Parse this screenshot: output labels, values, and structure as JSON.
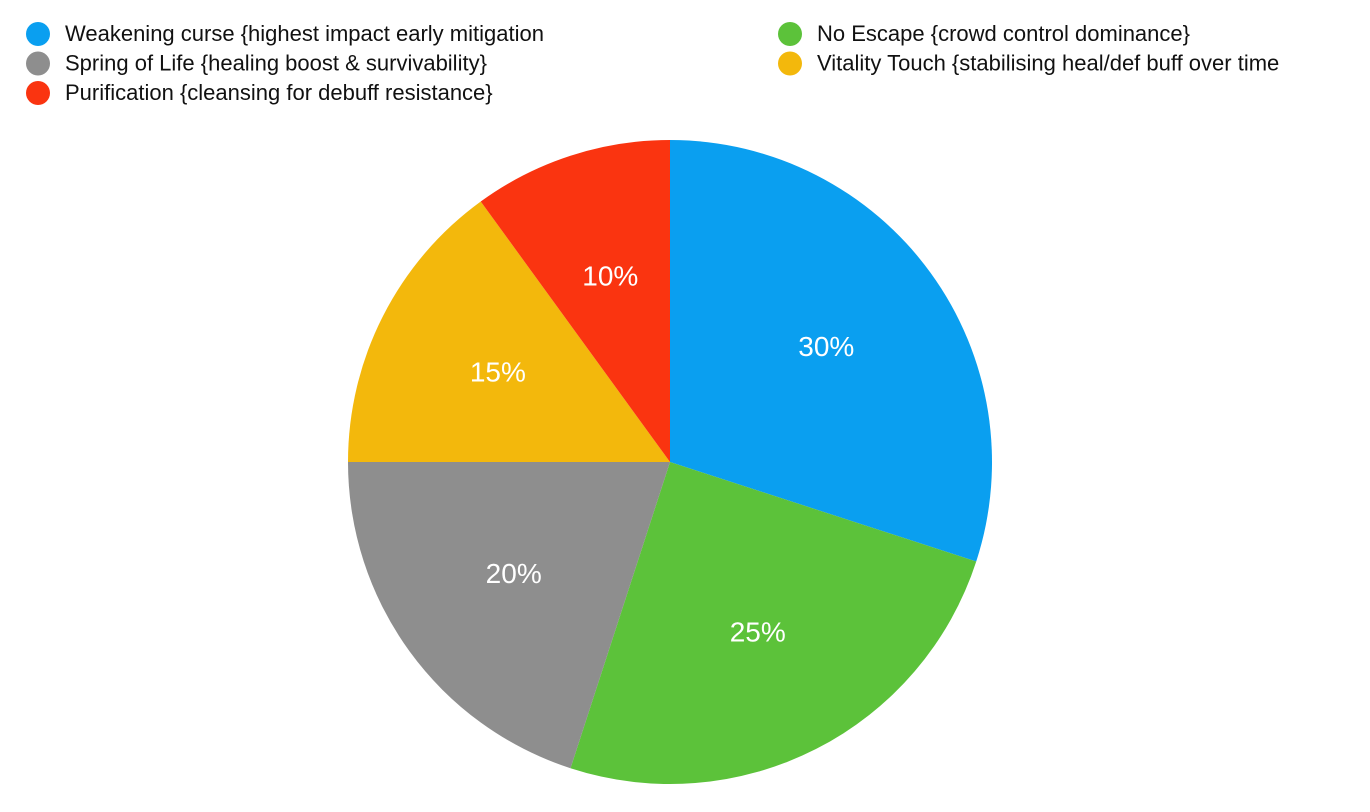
{
  "chart_data": {
    "type": "pie",
    "categories": [
      "Weakening curse {highest impact early mitigation",
      "No Escape {crowd control dominance}",
      "Spring of Life {healing boost & survivability}",
      "Vitality Touch {stabilising heal/def buff over time",
      "Purification {cleansing for debuff resistance}"
    ],
    "values": [
      30,
      25,
      20,
      15,
      10
    ],
    "value_labels": [
      "30%",
      "25%",
      "20%",
      "15%",
      "10%"
    ],
    "colors": [
      "#0a9ff0",
      "#5cc23a",
      "#8e8e8e",
      "#f3b80c",
      "#fa3410"
    ]
  }
}
